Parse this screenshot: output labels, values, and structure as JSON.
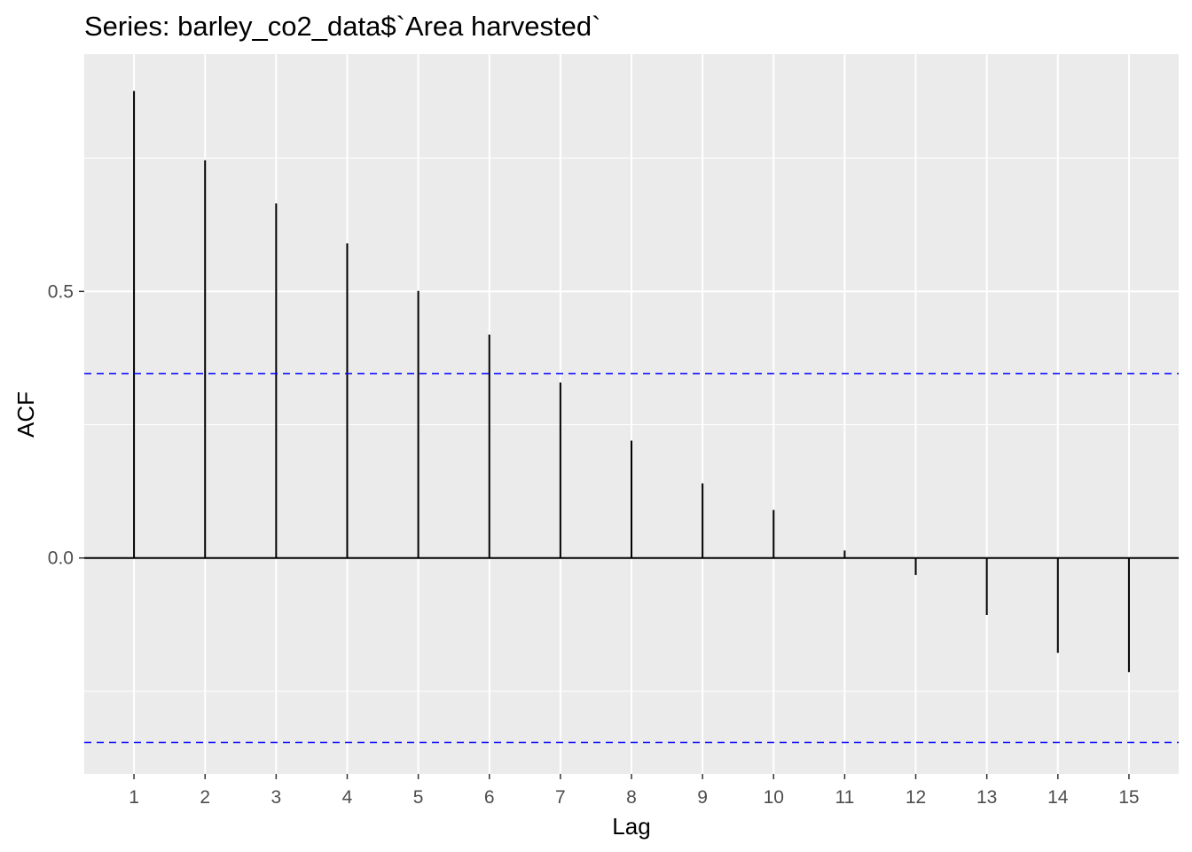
{
  "chart_data": {
    "type": "bar",
    "title": "Series: barley_co2_data$`Area harvested`",
    "xlabel": "Lag",
    "ylabel": "ACF",
    "x": [
      1,
      2,
      3,
      4,
      5,
      6,
      7,
      8,
      9,
      10,
      11,
      12,
      13,
      14,
      15
    ],
    "values": [
      0.876,
      0.746,
      0.665,
      0.59,
      0.501,
      0.419,
      0.329,
      0.22,
      0.14,
      0.09,
      0.014,
      -0.032,
      -0.107,
      -0.178,
      -0.214
    ],
    "x_ticks": [
      "1",
      "2",
      "3",
      "4",
      "5",
      "6",
      "7",
      "8",
      "9",
      "10",
      "11",
      "12",
      "13",
      "14",
      "15"
    ],
    "y_ticks": [
      "0.0",
      "0.5"
    ],
    "y_tick_values": [
      0.0,
      0.5
    ],
    "xlim": [
      0.3,
      15.7
    ],
    "ylim": [
      -0.405,
      0.945
    ],
    "confidence_bounds": [
      0.346,
      -0.346
    ],
    "grid": true,
    "colors": {
      "panel_background": "#ebebeb",
      "grid": "#ffffff",
      "bars": "#000000",
      "confidence_line": "#0000ff"
    }
  }
}
